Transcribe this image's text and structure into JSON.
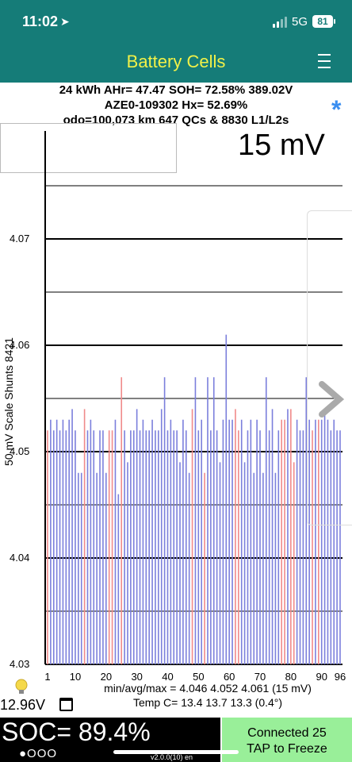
{
  "status_bar": {
    "time": "11:02",
    "network": "5G",
    "battery": "81"
  },
  "nav": {
    "title": "Battery Cells"
  },
  "info": {
    "line1": "24 kWh  AHr= 47.47  SOH= 72.58%   389.02V",
    "line2": "AZE0-109302   Hx= 52.69%",
    "line3": "odo=100,073 km 647 QCs & 8830 L1/L2s"
  },
  "scale_display": "15 mV",
  "axis_title": "50 mV Scale   Shunts 8421",
  "colors": {
    "header": "#157c78",
    "title": "#f1f148",
    "normal_bar": "#7b7fdc",
    "shunt_bar": "#f08a8a",
    "connected_bg": "#99ef99"
  },
  "chart_data": {
    "type": "bar",
    "ylim": [
      4.03,
      4.075
    ],
    "ytick_labels": [
      "4.07",
      "4.06",
      "4.05",
      "4.04",
      "4.03"
    ],
    "yticks": [
      4.07,
      4.06,
      4.05,
      4.04,
      4.03
    ],
    "xtick_labels": [
      "1",
      "10",
      "20",
      "30",
      "40",
      "50",
      "60",
      "70",
      "80",
      "90",
      "96"
    ],
    "xticks": [
      1,
      10,
      20,
      30,
      40,
      50,
      60,
      70,
      80,
      90,
      96
    ],
    "cells": [
      1,
      2,
      3,
      4,
      5,
      6,
      7,
      8,
      9,
      10,
      11,
      12,
      13,
      14,
      15,
      16,
      17,
      18,
      19,
      20,
      21,
      22,
      23,
      24,
      25,
      26,
      27,
      28,
      29,
      30,
      31,
      32,
      33,
      34,
      35,
      36,
      37,
      38,
      39,
      40,
      41,
      42,
      43,
      44,
      45,
      46,
      47,
      48,
      49,
      50,
      51,
      52,
      53,
      54,
      55,
      56,
      57,
      58,
      59,
      60,
      61,
      62,
      63,
      64,
      65,
      66,
      67,
      68,
      69,
      70,
      71,
      72,
      73,
      74,
      75,
      76,
      77,
      78,
      79,
      80,
      81,
      82,
      83,
      84,
      85,
      86,
      87,
      88,
      89,
      90,
      91,
      92,
      93,
      94,
      95,
      96
    ],
    "values": [
      4.052,
      4.053,
      4.052,
      4.053,
      4.052,
      4.053,
      4.052,
      4.053,
      4.054,
      4.052,
      4.048,
      4.048,
      4.054,
      4.052,
      4.053,
      4.052,
      4.048,
      4.052,
      4.052,
      4.048,
      4.052,
      4.052,
      4.053,
      4.046,
      4.057,
      4.052,
      4.049,
      4.052,
      4.052,
      4.054,
      4.052,
      4.053,
      4.052,
      4.052,
      4.053,
      4.052,
      4.052,
      4.054,
      4.057,
      4.052,
      4.053,
      4.052,
      4.052,
      4.049,
      4.053,
      4.052,
      4.048,
      4.054,
      4.057,
      4.052,
      4.053,
      4.048,
      4.057,
      4.052,
      4.057,
      4.052,
      4.049,
      4.053,
      4.061,
      4.053,
      4.053,
      4.054,
      4.052,
      4.053,
      4.049,
      4.052,
      4.053,
      4.048,
      4.053,
      4.052,
      4.048,
      4.057,
      4.052,
      4.054,
      4.048,
      4.052,
      4.053,
      4.053,
      4.054,
      4.054,
      4.049,
      4.053,
      4.052,
      4.052,
      4.057,
      4.053,
      4.052,
      4.053,
      4.053,
      4.053,
      4.054,
      4.053,
      4.052,
      4.053,
      4.052,
      4.052
    ],
    "shunted": [
      1,
      13,
      21,
      22,
      25,
      48,
      52,
      62,
      63,
      77,
      78,
      80,
      81,
      87,
      89
    ],
    "summary_line1": "min/avg/max = 4.046 4.052 4.061  (15 mV)",
    "summary_line2": "Temp C= 13.4  13.7  13.3  (0.4°)"
  },
  "pack_voltage": "12.96V",
  "soc": "SOC= 89.4%",
  "page_dots": "●OOO",
  "connection": {
    "line1": "Connected 25",
    "line2": "TAP to Freeze"
  },
  "version": "v2.0.0(10) en"
}
